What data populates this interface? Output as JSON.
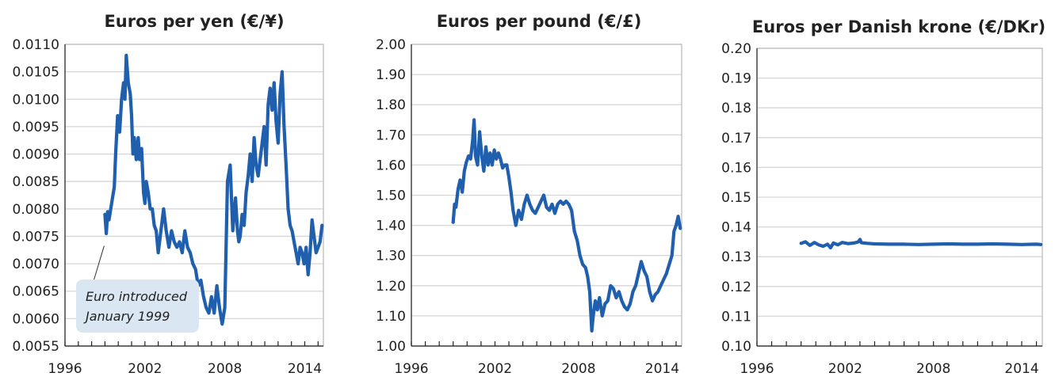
{
  "chart_data": [
    {
      "type": "line",
      "title": "Euros per yen (€/¥)",
      "xlim": [
        1996,
        2015.4
      ],
      "ylim": [
        0.0055,
        0.011
      ],
      "x_ticks": [
        1996,
        2002,
        2008,
        2014
      ],
      "x_minor_ticks": [
        1996,
        1997,
        1998,
        1999,
        2000,
        2001,
        2002,
        2003,
        2004,
        2005,
        2006,
        2007,
        2008,
        2009,
        2010,
        2011,
        2012,
        2013,
        2014,
        2015
      ],
      "y_ticks": [
        0.0055,
        0.006,
        0.0065,
        0.007,
        0.0075,
        0.008,
        0.0085,
        0.009,
        0.0095,
        0.01,
        0.0105,
        0.011
      ],
      "y_tick_labels": [
        "0.0055",
        "0.0060",
        "0.0065",
        "0.0070",
        "0.0075",
        "0.0080",
        "0.0085",
        "0.0090",
        "0.0095",
        "0.0100",
        "0.0105",
        "0.0110"
      ],
      "x_tick_labels": [
        "1996",
        "2002",
        "2008",
        "2014"
      ],
      "grid": true,
      "series": [
        {
          "color": "#1f5fae",
          "x": [
            1999.0,
            1999.1,
            1999.2,
            1999.3,
            1999.5,
            1999.7,
            1999.8,
            1999.95,
            2000.1,
            2000.25,
            2000.4,
            2000.5,
            2000.6,
            2000.75,
            2000.9,
            2001.0,
            2001.1,
            2001.2,
            2001.35,
            2001.5,
            2001.6,
            2001.75,
            2001.9,
            2002.0,
            2002.1,
            2002.25,
            2002.4,
            2002.55,
            2002.7,
            2002.85,
            2003.0,
            2003.2,
            2003.4,
            2003.6,
            2003.8,
            2004.0,
            2004.2,
            2004.4,
            2004.6,
            2004.8,
            2005.0,
            2005.2,
            2005.4,
            2005.6,
            2005.8,
            2006.0,
            2006.2,
            2006.4,
            2006.6,
            2006.8,
            2007.0,
            2007.2,
            2007.4,
            2007.6,
            2007.8,
            2008.0,
            2008.2,
            2008.4,
            2008.6,
            2008.8,
            2008.95,
            2009.05,
            2009.15,
            2009.3,
            2009.45,
            2009.6,
            2009.75,
            2009.9,
            2010.05,
            2010.2,
            2010.35,
            2010.5,
            2010.65,
            2010.8,
            2010.95,
            2011.1,
            2011.25,
            2011.4,
            2011.55,
            2011.7,
            2011.85,
            2012.0,
            2012.15,
            2012.3,
            2012.45,
            2012.6,
            2012.75,
            2012.9,
            2013.05,
            2013.2,
            2013.35,
            2013.5,
            2013.65,
            2013.8,
            2013.95,
            2014.1,
            2014.25,
            2014.4,
            2014.55,
            2014.7,
            2014.85,
            2015.0,
            2015.15,
            2015.3
          ],
          "y": [
            0.0079,
            0.00755,
            0.00795,
            0.0078,
            0.0081,
            0.0084,
            0.009,
            0.0097,
            0.0094,
            0.01,
            0.0103,
            0.01,
            0.0108,
            0.0103,
            0.0101,
            0.0097,
            0.009,
            0.0093,
            0.0089,
            0.0093,
            0.0089,
            0.0091,
            0.0083,
            0.0081,
            0.0085,
            0.0083,
            0.008,
            0.008,
            0.0077,
            0.0076,
            0.0072,
            0.0076,
            0.008,
            0.0076,
            0.0073,
            0.0076,
            0.0074,
            0.0073,
            0.0074,
            0.0072,
            0.0076,
            0.0073,
            0.0072,
            0.007,
            0.0069,
            0.0066,
            0.0067,
            0.0064,
            0.0062,
            0.0061,
            0.0064,
            0.0061,
            0.0066,
            0.0062,
            0.0059,
            0.0062,
            0.0085,
            0.0088,
            0.0076,
            0.0082,
            0.0076,
            0.0074,
            0.0075,
            0.0079,
            0.0077,
            0.0083,
            0.0086,
            0.009,
            0.0085,
            0.0093,
            0.0088,
            0.0086,
            0.0089,
            0.0092,
            0.0095,
            0.0088,
            0.0099,
            0.0102,
            0.0098,
            0.0103,
            0.0096,
            0.0092,
            0.0101,
            0.0105,
            0.0095,
            0.0088,
            0.008,
            0.0077,
            0.0076,
            0.0074,
            0.0072,
            0.007,
            0.0073,
            0.0072,
            0.007,
            0.0073,
            0.0068,
            0.0072,
            0.0078,
            0.0075,
            0.0072,
            0.0073,
            0.0074,
            0.0077
          ]
        }
      ],
      "annotation": {
        "lines": [
          "Euro introduced",
          "January 1999"
        ],
        "point": [
          1999.0,
          0.0075
        ]
      }
    },
    {
      "type": "line",
      "title": "Euros per pound (€/£)",
      "xlim": [
        1996,
        2015.4
      ],
      "ylim": [
        1.0,
        2.0
      ],
      "x_ticks": [
        1996,
        2002,
        2008,
        2014
      ],
      "x_minor_ticks": [
        1996,
        1997,
        1998,
        1999,
        2000,
        2001,
        2002,
        2003,
        2004,
        2005,
        2006,
        2007,
        2008,
        2009,
        2010,
        2011,
        2012,
        2013,
        2014,
        2015
      ],
      "y_ticks": [
        1.0,
        1.1,
        1.2,
        1.3,
        1.4,
        1.5,
        1.6,
        1.7,
        1.8,
        1.9,
        2.0
      ],
      "y_tick_labels": [
        "1.00",
        "1.10",
        "1.20",
        "1.30",
        "1.40",
        "1.50",
        "1.60",
        "1.70",
        "1.80",
        "1.90",
        "2.00"
      ],
      "x_tick_labels": [
        "1996",
        "2002",
        "2008",
        "2014"
      ],
      "grid": true,
      "series": [
        {
          "color": "#1f5fae",
          "x": [
            1999.0,
            1999.1,
            1999.2,
            1999.35,
            1999.5,
            1999.65,
            1999.8,
            1999.95,
            2000.1,
            2000.25,
            2000.4,
            2000.5,
            2000.6,
            2000.75,
            2000.9,
            2001.05,
            2001.2,
            2001.35,
            2001.5,
            2001.65,
            2001.8,
            2001.95,
            2002.1,
            2002.25,
            2002.4,
            2002.55,
            2002.7,
            2002.85,
            2003.0,
            2003.15,
            2003.3,
            2003.5,
            2003.7,
            2003.9,
            2004.1,
            2004.3,
            2004.5,
            2004.7,
            2004.9,
            2005.1,
            2005.3,
            2005.5,
            2005.7,
            2005.9,
            2006.1,
            2006.3,
            2006.5,
            2006.7,
            2006.9,
            2007.1,
            2007.3,
            2007.5,
            2007.7,
            2007.9,
            2008.1,
            2008.3,
            2008.5,
            2008.65,
            2008.8,
            2008.95,
            2009.05,
            2009.2,
            2009.35,
            2009.5,
            2009.7,
            2009.9,
            2010.1,
            2010.3,
            2010.5,
            2010.7,
            2010.9,
            2011.1,
            2011.3,
            2011.5,
            2011.7,
            2011.9,
            2012.1,
            2012.3,
            2012.5,
            2012.7,
            2012.9,
            2013.1,
            2013.3,
            2013.5,
            2013.7,
            2013.9,
            2014.1,
            2014.3,
            2014.5,
            2014.7,
            2014.85,
            2015.0,
            2015.15,
            2015.3
          ],
          "y": [
            1.41,
            1.47,
            1.46,
            1.52,
            1.55,
            1.51,
            1.58,
            1.61,
            1.63,
            1.62,
            1.68,
            1.75,
            1.63,
            1.6,
            1.71,
            1.63,
            1.58,
            1.66,
            1.6,
            1.64,
            1.6,
            1.65,
            1.62,
            1.64,
            1.62,
            1.59,
            1.6,
            1.6,
            1.56,
            1.51,
            1.45,
            1.4,
            1.45,
            1.42,
            1.47,
            1.5,
            1.47,
            1.45,
            1.44,
            1.46,
            1.48,
            1.5,
            1.46,
            1.45,
            1.47,
            1.44,
            1.47,
            1.48,
            1.47,
            1.48,
            1.47,
            1.45,
            1.38,
            1.35,
            1.3,
            1.27,
            1.26,
            1.23,
            1.18,
            1.05,
            1.1,
            1.15,
            1.12,
            1.16,
            1.1,
            1.14,
            1.15,
            1.2,
            1.19,
            1.16,
            1.18,
            1.15,
            1.13,
            1.12,
            1.14,
            1.18,
            1.2,
            1.24,
            1.28,
            1.25,
            1.23,
            1.18,
            1.15,
            1.17,
            1.18,
            1.2,
            1.22,
            1.24,
            1.27,
            1.3,
            1.38,
            1.4,
            1.43,
            1.39
          ]
        }
      ]
    },
    {
      "type": "line",
      "title": "Euros per Danish krone (€/DKr)",
      "xlim": [
        1996,
        2015.4
      ],
      "ylim": [
        0.1,
        0.2
      ],
      "x_ticks": [
        1996,
        2002,
        2008,
        2014
      ],
      "x_minor_ticks": [
        1996,
        1997,
        1998,
        1999,
        2000,
        2001,
        2002,
        2003,
        2004,
        2005,
        2006,
        2007,
        2008,
        2009,
        2010,
        2011,
        2012,
        2013,
        2014,
        2015
      ],
      "y_ticks": [
        0.1,
        0.11,
        0.12,
        0.13,
        0.14,
        0.15,
        0.16,
        0.17,
        0.18,
        0.19,
        0.2
      ],
      "y_tick_labels": [
        "0.10",
        "0.11",
        "0.12",
        "0.13",
        "0.14",
        "0.15",
        "0.16",
        "0.17",
        "0.18",
        "0.19",
        "0.20"
      ],
      "x_tick_labels": [
        "1996",
        "2002",
        "2008",
        "2014"
      ],
      "grid": true,
      "series": [
        {
          "color": "#1f5fae",
          "x": [
            1999.0,
            1999.3,
            1999.6,
            1999.9,
            2000.2,
            2000.5,
            2000.8,
            2001.0,
            2001.2,
            2001.5,
            2001.8,
            2002.2,
            2002.6,
            2002.9,
            2003.0,
            2003.1,
            2003.5,
            2004.0,
            2005.0,
            2006.0,
            2007.0,
            2008.0,
            2009.0,
            2010.0,
            2011.0,
            2012.0,
            2013.0,
            2014.0,
            2015.0,
            2015.3
          ],
          "y": [
            0.1345,
            0.135,
            0.1338,
            0.1348,
            0.134,
            0.1335,
            0.1342,
            0.133,
            0.1346,
            0.134,
            0.1348,
            0.1344,
            0.1346,
            0.135,
            0.1358,
            0.1347,
            0.1345,
            0.1343,
            0.1342,
            0.1342,
            0.1341,
            0.1342,
            0.1343,
            0.1342,
            0.1342,
            0.1343,
            0.1342,
            0.1341,
            0.1342,
            0.1341
          ]
        }
      ]
    }
  ]
}
